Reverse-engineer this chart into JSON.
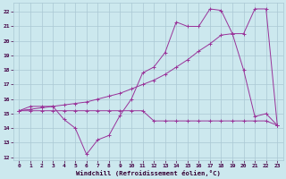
{
  "xlabel": "Windchill (Refroidissement éolien,°C)",
  "bg_color": "#cce8ee",
  "grid_color": "#aac8d4",
  "line_color": "#993399",
  "xlim": [
    -0.5,
    23.5
  ],
  "ylim": [
    11.8,
    22.6
  ],
  "xticks": [
    0,
    1,
    2,
    3,
    4,
    5,
    6,
    7,
    8,
    9,
    10,
    11,
    12,
    13,
    14,
    15,
    16,
    17,
    18,
    19,
    20,
    21,
    22,
    23
  ],
  "yticks": [
    12,
    13,
    14,
    15,
    16,
    17,
    18,
    19,
    20,
    21,
    22
  ],
  "line1_x": [
    0,
    1,
    2,
    3,
    4,
    5,
    6,
    7,
    8,
    9,
    10,
    11,
    12,
    13,
    14,
    15,
    16,
    17,
    18,
    19,
    20,
    21,
    22,
    23
  ],
  "line1_y": [
    15.2,
    15.5,
    15.5,
    15.5,
    14.6,
    14.0,
    12.2,
    13.2,
    13.5,
    14.9,
    16.0,
    17.8,
    18.2,
    19.2,
    21.3,
    21.0,
    21.0,
    22.2,
    22.1,
    20.5,
    18.0,
    14.8,
    15.0,
    14.2
  ],
  "line2_x": [
    0,
    1,
    2,
    3,
    4,
    5,
    6,
    7,
    8,
    9,
    10,
    11,
    12,
    13,
    14,
    15,
    16,
    17,
    18,
    19,
    20,
    21,
    22,
    23
  ],
  "line2_y": [
    15.2,
    15.2,
    15.2,
    15.2,
    15.2,
    15.2,
    15.2,
    15.2,
    15.2,
    15.2,
    15.2,
    15.2,
    14.5,
    14.5,
    14.5,
    14.5,
    14.5,
    14.5,
    14.5,
    14.5,
    14.5,
    14.5,
    14.5,
    14.2
  ],
  "line3_x": [
    0,
    1,
    2,
    3,
    4,
    5,
    6,
    7,
    8,
    9,
    10,
    11,
    12,
    13,
    14,
    15,
    16,
    17,
    18,
    19,
    20,
    21,
    22,
    23
  ],
  "line3_y": [
    15.2,
    15.3,
    15.4,
    15.5,
    15.6,
    15.7,
    15.8,
    16.0,
    16.2,
    16.4,
    16.7,
    17.0,
    17.3,
    17.7,
    18.2,
    18.7,
    19.3,
    19.8,
    20.4,
    20.5,
    20.5,
    22.2,
    22.2,
    14.2
  ]
}
